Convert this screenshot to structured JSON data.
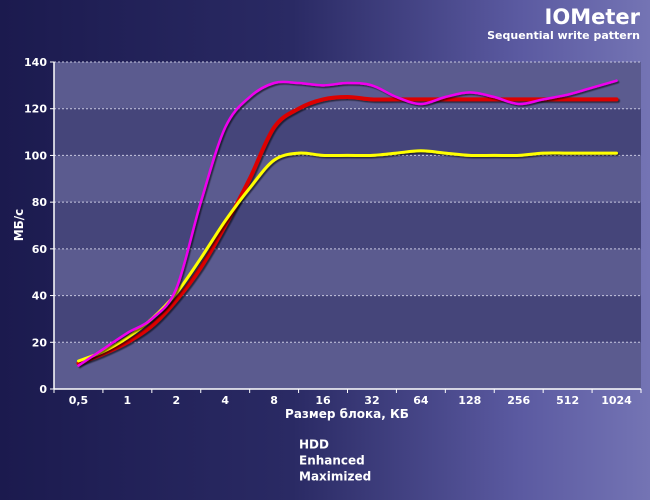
{
  "chart_data": {
    "type": "line",
    "title": "IOMeter",
    "subtitle": "Sequential write pattern",
    "xlabel": "Размер блока, КБ",
    "ylabel": "МБ/с",
    "categories": [
      "0,5",
      "1",
      "2",
      "4",
      "8",
      "16",
      "32",
      "64",
      "128",
      "256",
      "512",
      "1024"
    ],
    "ylim": [
      0,
      140
    ],
    "yticks": [
      0,
      20,
      40,
      60,
      80,
      100,
      120,
      140
    ],
    "grid": true,
    "legend_position": "bottom-center",
    "plot_colors": {
      "light": "#5b5b8f",
      "dark": "#45457a",
      "grid": "#c8c8e0"
    },
    "series": [
      {
        "name": "HDD",
        "color": "#dd0000",
        "width": 4,
        "points": [
          [
            0,
            11
          ],
          [
            0.5,
            15
          ],
          [
            1,
            20
          ],
          [
            1.5,
            27
          ],
          [
            2,
            38
          ],
          [
            2.5,
            52
          ],
          [
            3,
            70
          ],
          [
            3.5,
            90
          ],
          [
            4,
            112
          ],
          [
            4.5,
            120
          ],
          [
            5,
            124
          ],
          [
            5.5,
            125
          ],
          [
            6,
            124
          ],
          [
            6.5,
            124
          ],
          [
            7,
            124
          ],
          [
            7.5,
            124
          ],
          [
            8,
            124
          ],
          [
            8.5,
            124
          ],
          [
            9,
            124
          ],
          [
            9.5,
            124
          ],
          [
            10,
            124
          ],
          [
            10.5,
            124
          ],
          [
            11,
            124
          ]
        ]
      },
      {
        "name": "Enhanced",
        "color": "#ffff00",
        "width": 3,
        "points": [
          [
            0,
            12
          ],
          [
            0.5,
            16
          ],
          [
            1,
            22
          ],
          [
            1.5,
            30
          ],
          [
            2,
            41
          ],
          [
            2.5,
            56
          ],
          [
            3,
            72
          ],
          [
            3.5,
            86
          ],
          [
            4,
            98
          ],
          [
            4.5,
            101
          ],
          [
            5,
            100
          ],
          [
            5.5,
            100
          ],
          [
            6,
            100
          ],
          [
            6.5,
            101
          ],
          [
            7,
            102
          ],
          [
            7.5,
            101
          ],
          [
            8,
            100
          ],
          [
            8.5,
            100
          ],
          [
            9,
            100
          ],
          [
            9.5,
            101
          ],
          [
            10,
            101
          ],
          [
            10.5,
            101
          ],
          [
            11,
            101
          ]
        ]
      },
      {
        "name": "Maximized",
        "color": "#ee00ee",
        "width": 2.5,
        "points": [
          [
            0,
            10
          ],
          [
            0.5,
            17
          ],
          [
            1,
            24
          ],
          [
            1.5,
            30
          ],
          [
            2,
            43
          ],
          [
            2.5,
            80
          ],
          [
            3,
            112
          ],
          [
            3.5,
            125
          ],
          [
            4,
            131
          ],
          [
            4.5,
            131
          ],
          [
            5,
            130
          ],
          [
            5.5,
            131
          ],
          [
            6,
            130
          ],
          [
            6.5,
            125
          ],
          [
            7,
            122
          ],
          [
            7.5,
            125
          ],
          [
            8,
            127
          ],
          [
            8.5,
            125
          ],
          [
            9,
            122
          ],
          [
            9.5,
            124
          ],
          [
            10,
            126
          ],
          [
            10.5,
            129
          ],
          [
            11,
            132
          ]
        ]
      }
    ]
  }
}
